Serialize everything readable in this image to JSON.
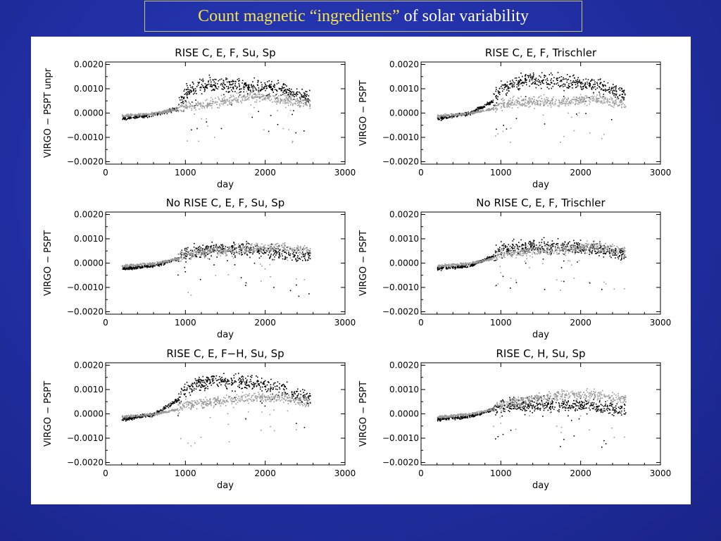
{
  "slide": {
    "title_highlight": "Count magnetic “ingredients”",
    "title_rest": " of solar variability"
  },
  "colors": {
    "background": "#2231a8",
    "title_highlight": "#f2e34a",
    "title_rest": "#ffffff",
    "series_dark": "#000000",
    "series_gray": "#9a9a9a"
  },
  "chart_data": [
    {
      "type": "scatter",
      "title": "RISE C, E, F, Su, Sp",
      "xlabel": "day",
      "ylabel": "VIRGO − PSPT unpr",
      "xlim": [
        0,
        3000
      ],
      "ylim": [
        -0.0021,
        0.0021
      ],
      "xticks": [
        "0",
        "1000",
        "2000",
        "3000"
      ],
      "yticks": [
        "0.0020",
        "0.0010",
        "0.0000",
        "−0.0010",
        "−0.0020"
      ],
      "series": [
        {
          "color": "#000000",
          "trend": [
            [
              200,
              -0.0002
            ],
            [
              600,
              -5e-05
            ],
            [
              900,
              0.0002
            ],
            [
              1000,
              0.0009
            ],
            [
              1300,
              0.0012
            ],
            [
              1800,
              0.0011
            ],
            [
              2200,
              0.001
            ],
            [
              2550,
              0.0006
            ]
          ],
          "spread": 0.00045
        },
        {
          "color": "#9a9a9a",
          "trend": [
            [
              200,
              -0.0001
            ],
            [
              600,
              0.0
            ],
            [
              900,
              0.0002
            ],
            [
              1000,
              0.0003
            ],
            [
              1300,
              0.0004
            ],
            [
              1800,
              0.0007
            ],
            [
              2200,
              0.0006
            ],
            [
              2550,
              0.0004
            ]
          ],
          "spread": 0.0003
        }
      ]
    },
    {
      "type": "scatter",
      "title": "RISE C, E, F, Trischler",
      "xlabel": "day",
      "ylabel": "VIRGO − PSPT",
      "xlim": [
        0,
        3000
      ],
      "ylim": [
        -0.0021,
        0.0021
      ],
      "xticks": [
        "0",
        "1000",
        "2000",
        "3000"
      ],
      "yticks": [
        "0.0020",
        "0.0010",
        "0.0000",
        "−0.0010",
        "−0.0020"
      ],
      "series": [
        {
          "color": "#000000",
          "trend": [
            [
              200,
              -0.0002
            ],
            [
              600,
              0.0
            ],
            [
              900,
              0.0005
            ],
            [
              1000,
              0.001
            ],
            [
              1300,
              0.0014
            ],
            [
              1800,
              0.0013
            ],
            [
              2200,
              0.0012
            ],
            [
              2550,
              0.0008
            ]
          ],
          "spread": 0.00045
        },
        {
          "color": "#9a9a9a",
          "trend": [
            [
              200,
              -0.0001
            ],
            [
              600,
              0.0
            ],
            [
              900,
              0.0002
            ],
            [
              1000,
              0.0004
            ],
            [
              1300,
              0.0005
            ],
            [
              1800,
              0.0005
            ],
            [
              2200,
              0.0006
            ],
            [
              2550,
              0.0004
            ]
          ],
          "spread": 0.0003
        }
      ]
    },
    {
      "type": "scatter",
      "title": "No RISE C, E, F, Su, Sp",
      "xlabel": "day",
      "ylabel": "VIRGO − PSPT",
      "xlim": [
        0,
        3000
      ],
      "ylim": [
        -0.0021,
        0.0021
      ],
      "xticks": [
        "0",
        "1000",
        "2000",
        "3000"
      ],
      "yticks": [
        "0.0020",
        "0.0010",
        "0.0000",
        "−0.0010",
        "−0.0020"
      ],
      "series": [
        {
          "color": "#000000",
          "trend": [
            [
              200,
              -0.0002
            ],
            [
              600,
              -0.0001
            ],
            [
              900,
              0.0002
            ],
            [
              1000,
              0.0004
            ],
            [
              1300,
              0.0006
            ],
            [
              1800,
              0.0006
            ],
            [
              2200,
              0.0004
            ],
            [
              2550,
              0.0003
            ]
          ],
          "spread": 0.0004
        },
        {
          "color": "#9a9a9a",
          "trend": [
            [
              200,
              -0.0001
            ],
            [
              600,
              0.0
            ],
            [
              900,
              0.0002
            ],
            [
              1000,
              0.0004
            ],
            [
              1300,
              0.0005
            ],
            [
              1800,
              0.0006
            ],
            [
              2200,
              0.0007
            ],
            [
              2550,
              0.0005
            ]
          ],
          "spread": 0.0003
        }
      ]
    },
    {
      "type": "scatter",
      "title": "No RISE C, E, F, Trischler",
      "xlabel": "day",
      "ylabel": "VIRGO − PSPT",
      "xlim": [
        0,
        3000
      ],
      "ylim": [
        -0.0021,
        0.0021
      ],
      "xticks": [
        "0",
        "1000",
        "2000",
        "3000"
      ],
      "yticks": [
        "0.0020",
        "0.0010",
        "0.0000",
        "−0.0010",
        "−0.0020"
      ],
      "series": [
        {
          "color": "#000000",
          "trend": [
            [
              200,
              -0.0002
            ],
            [
              600,
              -0.0001
            ],
            [
              900,
              0.0003
            ],
            [
              1000,
              0.0006
            ],
            [
              1300,
              0.0007
            ],
            [
              1800,
              0.0007
            ],
            [
              2200,
              0.0006
            ],
            [
              2550,
              0.0004
            ]
          ],
          "spread": 0.0004
        },
        {
          "color": "#9a9a9a",
          "trend": [
            [
              200,
              -0.0001
            ],
            [
              600,
              0.0
            ],
            [
              900,
              0.0002
            ],
            [
              1000,
              0.0004
            ],
            [
              1300,
              0.0005
            ],
            [
              1800,
              0.0006
            ],
            [
              2200,
              0.0007
            ],
            [
              2550,
              0.0005
            ]
          ],
          "spread": 0.0003
        }
      ]
    },
    {
      "type": "scatter",
      "title": "RISE C, E, F−H, Su, Sp",
      "xlabel": "day",
      "ylabel": "VIRGO − PSPT",
      "xlim": [
        0,
        3000
      ],
      "ylim": [
        -0.0021,
        0.0021
      ],
      "xticks": [
        "0",
        "1000",
        "2000",
        "3000"
      ],
      "yticks": [
        "0.0020",
        "0.0010",
        "0.0000",
        "−0.0010",
        "−0.0020"
      ],
      "series": [
        {
          "color": "#000000",
          "trend": [
            [
              200,
              -0.0002
            ],
            [
              600,
              0.0
            ],
            [
              900,
              0.0006
            ],
            [
              1000,
              0.0011
            ],
            [
              1300,
              0.0014
            ],
            [
              1800,
              0.0013
            ],
            [
              2200,
              0.0011
            ],
            [
              2550,
              0.0006
            ]
          ],
          "spread": 0.00045
        },
        {
          "color": "#9a9a9a",
          "trend": [
            [
              200,
              -0.0001
            ],
            [
              600,
              0.0
            ],
            [
              900,
              0.0002
            ],
            [
              1000,
              0.0004
            ],
            [
              1300,
              0.0005
            ],
            [
              1800,
              0.0007
            ],
            [
              2200,
              0.0007
            ],
            [
              2550,
              0.0005
            ]
          ],
          "spread": 0.0003
        }
      ]
    },
    {
      "type": "scatter",
      "title": "RISE C, H, Su, Sp",
      "xlabel": "day",
      "ylabel": "VIRGO − PSPT",
      "xlim": [
        0,
        3000
      ],
      "ylim": [
        -0.0021,
        0.0021
      ],
      "xticks": [
        "0",
        "1000",
        "2000",
        "3000"
      ],
      "yticks": [
        "0.0020",
        "0.0010",
        "0.0000",
        "−0.0010",
        "−0.0020"
      ],
      "series": [
        {
          "color": "#000000",
          "trend": [
            [
              200,
              -0.0002
            ],
            [
              600,
              -0.0001
            ],
            [
              900,
              0.0002
            ],
            [
              1000,
              0.0003
            ],
            [
              1300,
              0.0004
            ],
            [
              1800,
              0.0004
            ],
            [
              2200,
              0.0003
            ],
            [
              2550,
              0.0002
            ]
          ],
          "spread": 0.0004
        },
        {
          "color": "#9a9a9a",
          "trend": [
            [
              200,
              -0.0001
            ],
            [
              600,
              0.0
            ],
            [
              900,
              0.0002
            ],
            [
              1000,
              0.0004
            ],
            [
              1300,
              0.0006
            ],
            [
              1800,
              0.0008
            ],
            [
              2200,
              0.0008
            ],
            [
              2550,
              0.0006
            ]
          ],
          "spread": 0.0003
        }
      ]
    }
  ]
}
